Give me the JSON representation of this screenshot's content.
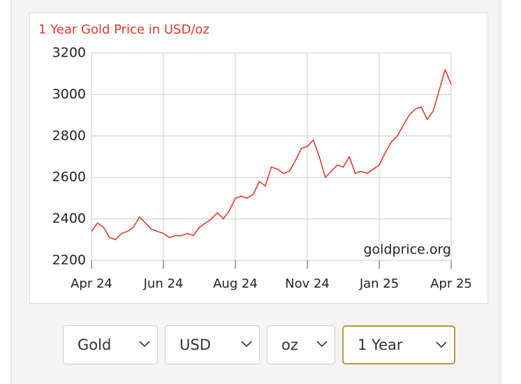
{
  "chart_data": {
    "type": "line",
    "title": "1 Year Gold Price in USD/oz",
    "annotation": "goldprice.org",
    "categories": [
      "Apr 24",
      null,
      null,
      null,
      null,
      null,
      null,
      null,
      null,
      null,
      null,
      null,
      "Jun 24",
      null,
      null,
      null,
      null,
      null,
      null,
      null,
      null,
      null,
      null,
      null,
      "Aug 24",
      null,
      null,
      null,
      null,
      null,
      null,
      null,
      null,
      null,
      null,
      null,
      "Nov 24",
      null,
      null,
      null,
      null,
      null,
      null,
      null,
      null,
      null,
      null,
      null,
      "Jan 25",
      null,
      null,
      null,
      null,
      null,
      null,
      null,
      null,
      null,
      null,
      null,
      "Apr 25"
    ],
    "values": [
      2340,
      2380,
      2360,
      2310,
      2300,
      2330,
      2340,
      2360,
      2410,
      2380,
      2350,
      2340,
      2330,
      2310,
      2320,
      2320,
      2330,
      2320,
      2360,
      2380,
      2400,
      2430,
      2400,
      2440,
      2500,
      2510,
      2500,
      2520,
      2580,
      2560,
      2650,
      2640,
      2620,
      2630,
      2680,
      2740,
      2750,
      2780,
      2700,
      2600,
      2630,
      2660,
      2650,
      2700,
      2620,
      2630,
      2620,
      2640,
      2660,
      2720,
      2770,
      2800,
      2850,
      2900,
      2930,
      2940,
      2880,
      2920,
      3020,
      3120,
      3050
    ],
    "color": "#e23a2c",
    "ylim": [
      2200,
      3200
    ],
    "yticks": [
      2200,
      2400,
      2600,
      2800,
      3000,
      3200
    ],
    "grid": true
  },
  "controls": [
    "Gold",
    "USD",
    "oz",
    "1 Year"
  ]
}
